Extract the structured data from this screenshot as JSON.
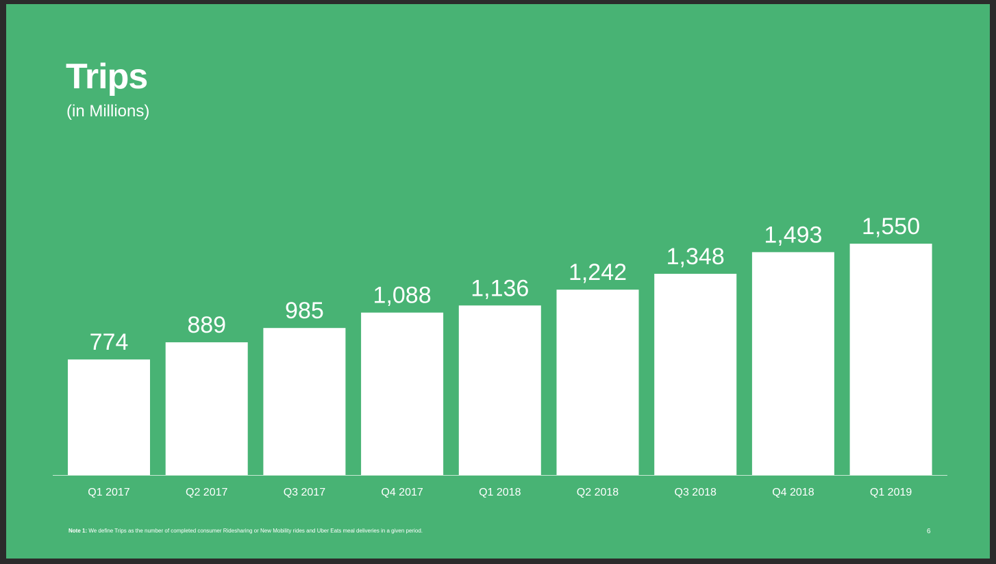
{
  "chart_data": {
    "type": "bar",
    "title": "Trips",
    "subtitle": "(in Millions)",
    "categories": [
      "Q1 2017",
      "Q2 2017",
      "Q3 2017",
      "Q4 2017",
      "Q1 2018",
      "Q2 2018",
      "Q3 2018",
      "Q4 2018",
      "Q1 2019"
    ],
    "values": [
      774,
      889,
      985,
      1088,
      1136,
      1242,
      1348,
      1493,
      1550
    ],
    "value_labels": [
      "774",
      "889",
      "985",
      "1,088",
      "1,136",
      "1,242",
      "1,348",
      "1,493",
      "1,550"
    ],
    "xlabel": "",
    "ylabel": "",
    "ylim": [
      0,
      1550
    ],
    "grid": false,
    "legend": "none",
    "bar_color": "#ffffff",
    "background_color": "#48b374"
  },
  "footer": {
    "note_label": "Note 1:",
    "note_text": " We define Trips as the number of completed consumer Ridesharing or New Mobility rides and Uber Eats meal deliveries in a given period.",
    "page_number": "6"
  }
}
